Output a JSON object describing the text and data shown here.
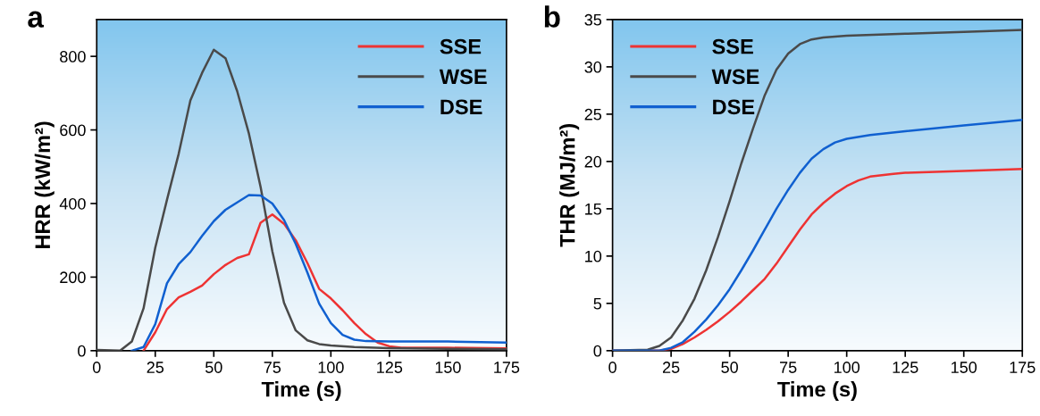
{
  "chart_data": [
    {
      "type": "line",
      "xlabel": "Time (s)",
      "ylabel": "HRR (kW/m²)",
      "annotations": [
        "a"
      ],
      "xlim": [
        0,
        175
      ],
      "xticks": [
        0,
        25,
        50,
        75,
        100,
        125,
        150,
        175
      ],
      "ylim": [
        0,
        900
      ],
      "yticks": [
        0,
        200,
        400,
        600,
        800
      ],
      "legend": "top right",
      "grid": false,
      "series": [
        {
          "name": "SSE",
          "color": "#ee3333",
          "x": [
            20,
            25,
            30,
            35,
            40,
            45,
            50,
            55,
            60,
            65,
            70,
            75,
            80,
            85,
            90,
            95,
            100,
            105,
            110,
            115,
            120,
            125,
            130,
            150,
            175
          ],
          "values": [
            0,
            50,
            113,
            145,
            160,
            177,
            208,
            233,
            252,
            262,
            348,
            370,
            345,
            300,
            238,
            168,
            142,
            110,
            75,
            45,
            22,
            12,
            8,
            8,
            6
          ]
        },
        {
          "name": "WSE",
          "color": "#4a4a4a",
          "x": [
            0,
            10,
            15,
            20,
            25,
            30,
            35,
            40,
            45,
            50,
            55,
            60,
            65,
            70,
            75,
            80,
            85,
            90,
            95,
            100,
            110,
            125,
            150,
            175
          ],
          "values": [
            2,
            0,
            25,
            115,
            280,
            410,
            535,
            680,
            755,
            818,
            795,
            705,
            590,
            445,
            270,
            130,
            55,
            28,
            18,
            14,
            10,
            7,
            5,
            4
          ]
        },
        {
          "name": "DSE",
          "color": "#1060d0",
          "x": [
            15,
            20,
            25,
            30,
            35,
            40,
            45,
            50,
            55,
            60,
            65,
            70,
            75,
            80,
            85,
            90,
            95,
            100,
            105,
            110,
            115,
            125,
            150,
            175
          ],
          "values": [
            0,
            10,
            72,
            183,
            235,
            268,
            312,
            352,
            383,
            403,
            423,
            422,
            400,
            355,
            290,
            212,
            128,
            75,
            43,
            30,
            26,
            25,
            25,
            22
          ]
        }
      ]
    },
    {
      "type": "line",
      "xlabel": "Time (s)",
      "ylabel": "THR (MJ/m²)",
      "annotations": [
        "b"
      ],
      "xlim": [
        0,
        175
      ],
      "xticks": [
        0,
        25,
        50,
        75,
        100,
        125,
        150,
        175
      ],
      "ylim": [
        0,
        35
      ],
      "yticks": [
        0,
        5,
        10,
        15,
        20,
        25,
        30,
        35
      ],
      "legend": "top left",
      "grid": false,
      "series": [
        {
          "name": "SSE",
          "color": "#ee3333",
          "x": [
            0,
            20,
            25,
            30,
            35,
            40,
            45,
            50,
            55,
            60,
            65,
            70,
            75,
            80,
            85,
            90,
            95,
            100,
            105,
            110,
            120,
            125,
            150,
            175
          ],
          "values": [
            0,
            0,
            0.2,
            0.7,
            1.4,
            2.2,
            3.1,
            4.1,
            5.2,
            6.4,
            7.6,
            9.2,
            11,
            12.8,
            14.4,
            15.6,
            16.6,
            17.4,
            18,
            18.4,
            18.7,
            18.8,
            19,
            19.2
          ]
        },
        {
          "name": "WSE",
          "color": "#4a4a4a",
          "x": [
            0,
            15,
            20,
            25,
            30,
            35,
            40,
            45,
            50,
            55,
            60,
            65,
            70,
            75,
            80,
            85,
            90,
            100,
            125,
            150,
            175
          ],
          "values": [
            0,
            0.1,
            0.5,
            1.4,
            3.2,
            5.5,
            8.5,
            12,
            15.8,
            19.8,
            23.5,
            27,
            29.7,
            31.4,
            32.4,
            32.9,
            33.1,
            33.3,
            33.5,
            33.7,
            33.9
          ]
        },
        {
          "name": "DSE",
          "color": "#1060d0",
          "x": [
            0,
            20,
            25,
            30,
            35,
            40,
            45,
            50,
            55,
            60,
            65,
            70,
            75,
            80,
            85,
            90,
            95,
            100,
            110,
            125,
            150,
            175
          ],
          "values": [
            0,
            0,
            0.3,
            0.9,
            2,
            3.3,
            4.8,
            6.5,
            8.5,
            10.6,
            12.8,
            15,
            17,
            18.8,
            20.3,
            21.3,
            22,
            22.4,
            22.8,
            23.2,
            23.8,
            24.4
          ]
        }
      ]
    }
  ]
}
